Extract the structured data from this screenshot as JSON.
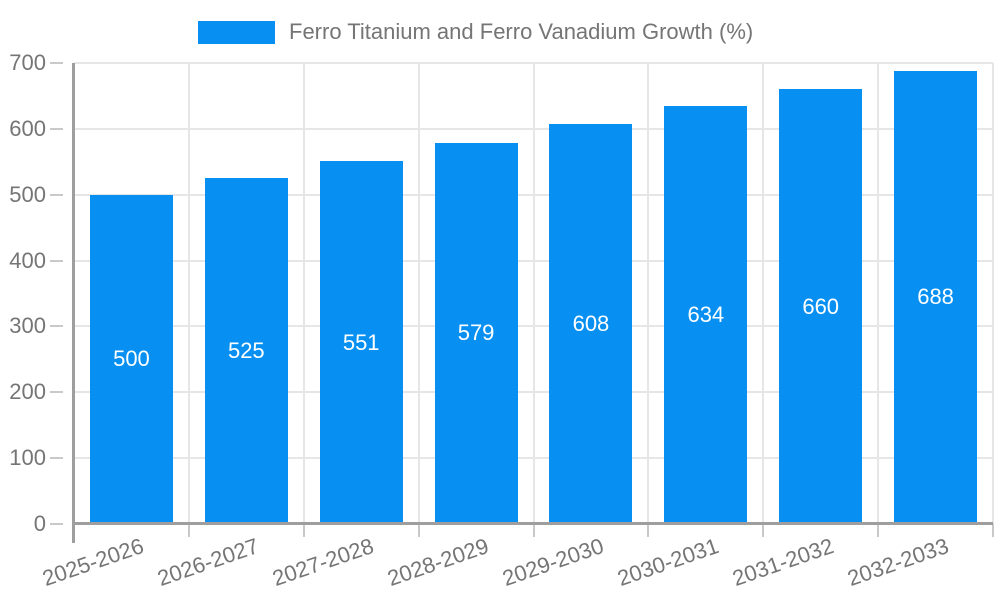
{
  "chart_data": {
    "type": "bar",
    "title": "Ferro Titanium and Ferro Vanadium Growth (%)",
    "legend": {
      "position": "top",
      "label": "Ferro Titanium and Ferro Vanadium Growth (%)"
    },
    "categories": [
      "2025-2026",
      "2026-2027",
      "2027-2028",
      "2028-2029",
      "2029-2030",
      "2030-2031",
      "2031-2032",
      "2032-2033"
    ],
    "values": [
      500,
      525,
      551,
      579,
      608,
      634,
      660,
      688
    ],
    "bar_value_labels": [
      "500",
      "525",
      "551",
      "579",
      "608",
      "634",
      "660",
      "688"
    ],
    "xlabel": "",
    "ylabel": "",
    "ylim": [
      0,
      700
    ],
    "yticks": [
      0,
      100,
      200,
      300,
      400,
      500,
      600,
      700
    ],
    "grid": true,
    "colors": {
      "bar": "#0790f2",
      "gridline": "#e6e6e6",
      "axis_line": "#9e9e9e",
      "tick": "#c9c9c9",
      "axis_text": "#757575",
      "bar_label_text": "#ffffff",
      "background": "#ffffff"
    }
  }
}
